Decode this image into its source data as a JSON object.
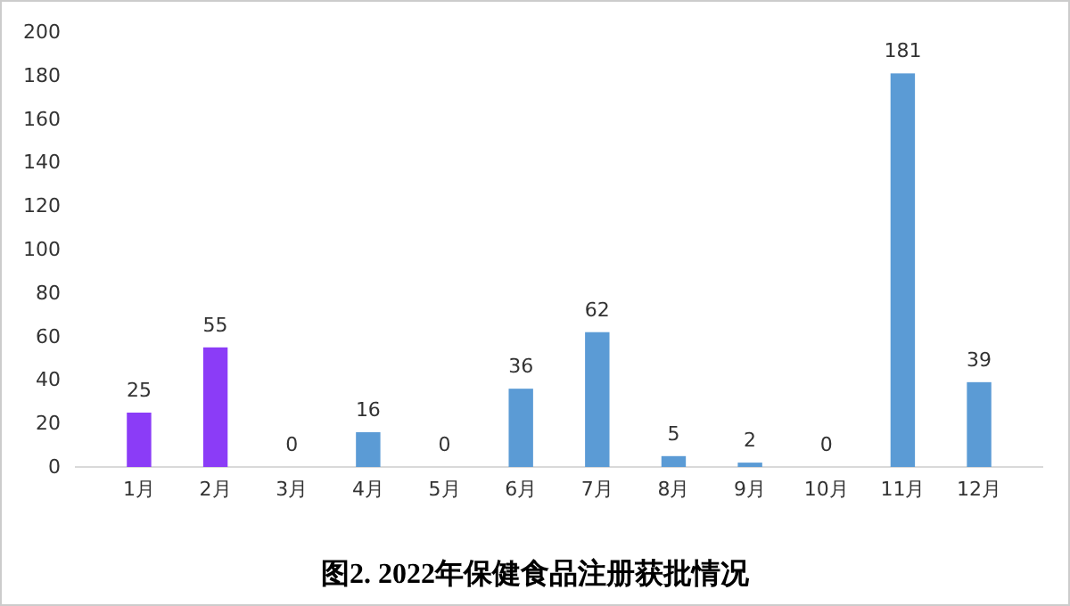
{
  "chart_data": {
    "type": "bar",
    "title": "图2. 2022年保健食品注册获批情况",
    "categories": [
      "1月",
      "2月",
      "3月",
      "4月",
      "5月",
      "6月",
      "7月",
      "8月",
      "9月",
      "10月",
      "11月",
      "12月"
    ],
    "values": [
      25,
      55,
      0,
      16,
      0,
      36,
      62,
      5,
      2,
      0,
      181,
      39
    ],
    "colors": [
      "#8b3cf7",
      "#8b3cf7",
      "#5b9bd5",
      "#5b9bd5",
      "#5b9bd5",
      "#5b9bd5",
      "#5b9bd5",
      "#5b9bd5",
      "#5b9bd5",
      "#5b9bd5",
      "#5b9bd5",
      "#5b9bd5"
    ],
    "ylim": [
      0,
      200
    ],
    "yticks": [
      0,
      20,
      40,
      60,
      80,
      100,
      120,
      140,
      160,
      180,
      200
    ],
    "data_labels": true,
    "grid": false
  }
}
